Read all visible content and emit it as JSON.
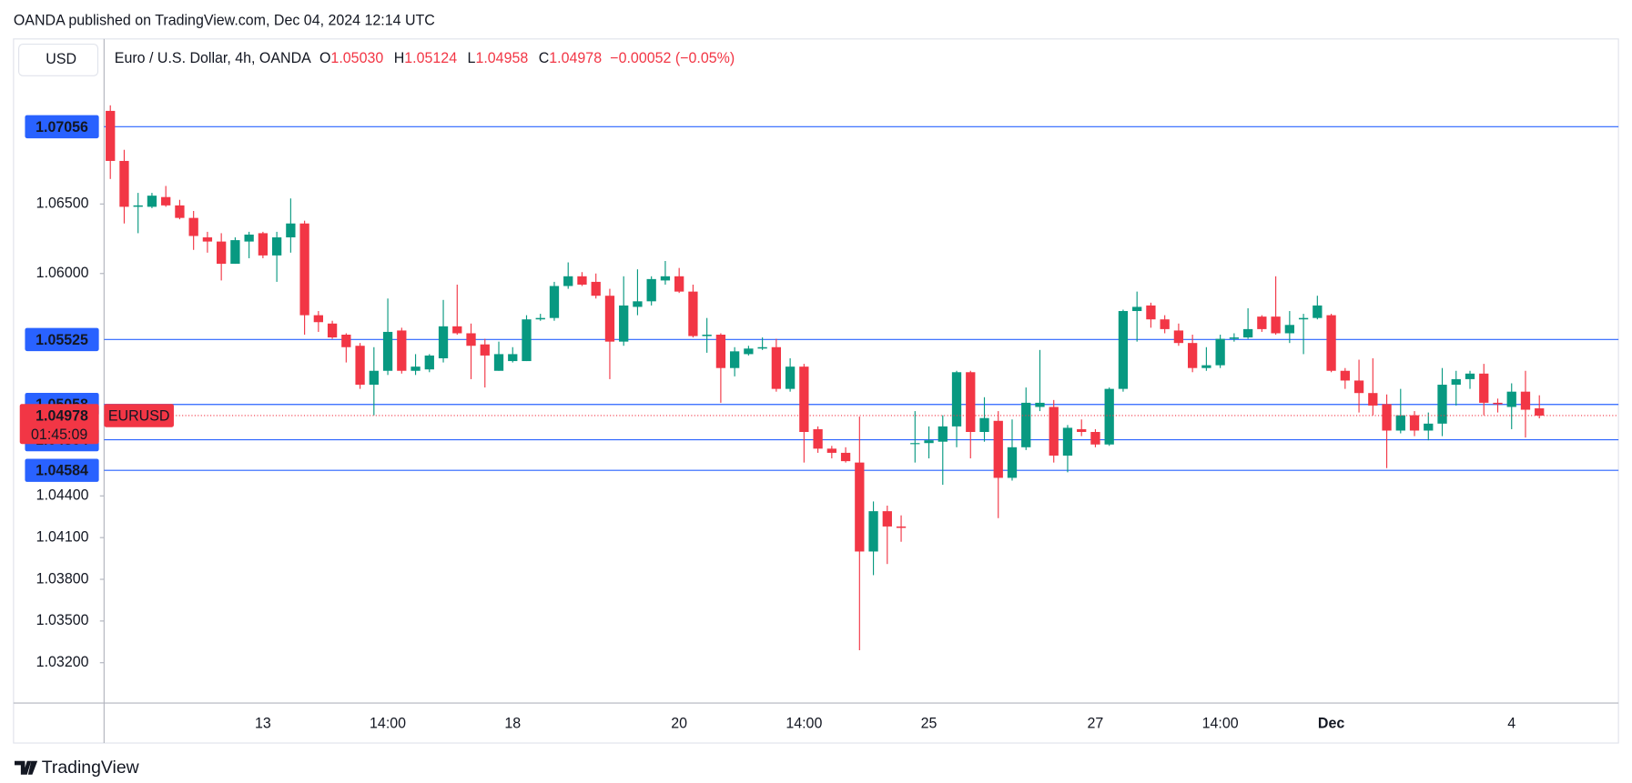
{
  "published": "OANDA published on TradingView.com, Dec 04, 2024 12:14 UTC",
  "brand": "TradingView",
  "chart_data": {
    "type": "candlestick",
    "currency": "USD",
    "header": {
      "symbol": "Euro / U.S. Dollar, 4h, OANDA",
      "items": [
        {
          "key": "O",
          "value": "1.05030"
        },
        {
          "key": "H",
          "value": "1.05124"
        },
        {
          "key": "L",
          "value": "1.04958"
        },
        {
          "key": "C",
          "value": "1.04978"
        }
      ],
      "change": "−0.00052 (−0.05%)"
    },
    "categories": [
      null,
      null,
      null,
      null,
      null,
      null,
      null,
      null,
      null,
      null,
      null,
      "13",
      null,
      null,
      null,
      null,
      null,
      null,
      null,
      null,
      "14:00",
      null,
      null,
      null,
      null,
      null,
      null,
      null,
      null,
      "18",
      null,
      null,
      null,
      null,
      null,
      null,
      null,
      null,
      null,
      null,
      null,
      "20",
      null,
      null,
      null,
      null,
      null,
      null,
      null,
      null,
      "14:00",
      null,
      null,
      null,
      null,
      null,
      null,
      null,
      null,
      "25",
      null,
      null,
      null,
      null,
      null,
      null,
      null,
      null,
      null,
      null,
      null,
      "27",
      null,
      null,
      null,
      null,
      null,
      null,
      null,
      null,
      "14:00",
      null,
      null,
      null,
      null,
      null,
      null,
      null,
      "Dec",
      null,
      null,
      null,
      null,
      null,
      null,
      null,
      null,
      null,
      null,
      null,
      null,
      "4",
      null,
      null
    ],
    "open": [
      1.0717,
      1.0681,
      1.0648,
      1.0648,
      1.0655,
      1.0649,
      1.064,
      1.0626,
      1.0623,
      1.0607,
      1.0623,
      1.0629,
      1.0613,
      1.0626,
      1.0636,
      1.057,
      1.0564,
      1.0556,
      1.0548,
      1.052,
      1.053,
      1.0559,
      1.053,
      1.0531,
      1.0539,
      1.0562,
      1.0557,
      1.0549,
      1.053,
      1.0537,
      1.0537,
      1.0567,
      1.0568,
      1.0591,
      1.0598,
      1.0594,
      1.0584,
      1.0551,
      1.0576,
      1.058,
      1.0595,
      1.0598,
      1.0587,
      1.0555,
      1.0556,
      1.0532,
      1.0542,
      1.0546,
      1.0547,
      1.0517,
      1.0533,
      1.0488,
      1.0474,
      1.0471,
      1.0464,
      1.04,
      1.0429,
      1.0418,
      1.0478,
      1.0478,
      1.0479,
      1.049,
      1.0529,
      1.0486,
      1.0494,
      1.0453,
      1.0475,
      1.0504,
      1.0504,
      1.0469,
      1.0488,
      1.0486,
      1.0477,
      1.0517,
      1.0573,
      1.0577,
      1.0567,
      1.0559,
      1.055,
      1.0532,
      1.0534,
      1.0553,
      1.0554,
      1.0569,
      1.0569,
      1.0557,
      1.0567,
      1.0568,
      1.057,
      1.053,
      1.0523,
      1.0514,
      1.0506,
      1.0487,
      1.0498,
      1.0487,
      1.0492,
      1.052,
      1.0524,
      1.0528,
      1.0507,
      1.0504,
      1.0515,
      1.0503
    ],
    "high": [
      1.0721,
      1.0689,
      1.0658,
      1.0658,
      1.0663,
      1.0653,
      1.0645,
      1.063,
      1.0629,
      1.0626,
      1.063,
      1.063,
      1.063,
      1.0654,
      1.0638,
      1.0573,
      1.0566,
      1.0557,
      1.055,
      1.0547,
      1.0582,
      1.0561,
      1.0542,
      1.0542,
      1.0581,
      1.0592,
      1.0564,
      1.0553,
      1.0551,
      1.0547,
      1.057,
      1.0571,
      1.0594,
      1.0608,
      1.0601,
      1.06,
      1.0589,
      1.0598,
      1.0603,
      1.0598,
      1.0609,
      1.0604,
      1.0592,
      1.0568,
      1.0557,
      1.0547,
      1.0548,
      1.0554,
      1.0553,
      1.0539,
      1.0535,
      1.049,
      1.0476,
      1.0475,
      1.0497,
      1.0436,
      1.0433,
      1.0426,
      1.0501,
      1.049,
      1.0498,
      1.053,
      1.053,
      1.0511,
      1.0501,
      1.0495,
      1.0518,
      1.0545,
      1.0509,
      1.0491,
      1.0495,
      1.0488,
      1.0518,
      1.0574,
      1.0587,
      1.0579,
      1.057,
      1.0564,
      1.0556,
      1.0547,
      1.0556,
      1.0557,
      1.0575,
      1.057,
      1.0598,
      1.0573,
      1.0571,
      1.0584,
      1.0571,
      1.0532,
      1.0538,
      1.0539,
      1.0513,
      1.0517,
      1.0501,
      1.05,
      1.0532,
      1.053,
      1.053,
      1.0535,
      1.051,
      1.0521,
      1.053,
      1.05124
    ],
    "low": [
      1.0668,
      1.0636,
      1.0629,
      1.0647,
      1.0648,
      1.0639,
      1.0617,
      1.0615,
      1.0595,
      1.0607,
      1.0611,
      1.0611,
      1.0594,
      1.0615,
      1.0556,
      1.0558,
      1.0553,
      1.0536,
      1.0517,
      1.0498,
      1.0527,
      1.0528,
      1.0527,
      1.0529,
      1.0536,
      1.0556,
      1.0524,
      1.0518,
      1.053,
      1.0536,
      1.0537,
      1.0566,
      1.0566,
      1.0589,
      1.0591,
      1.0582,
      1.0524,
      1.0548,
      1.057,
      1.0577,
      1.0592,
      1.0586,
      1.0554,
      1.0543,
      1.0507,
      1.0526,
      1.0541,
      1.0545,
      1.0515,
      1.0515,
      1.0464,
      1.0471,
      1.0467,
      1.0464,
      1.0329,
      1.0383,
      1.0391,
      1.0407,
      1.0464,
      1.0467,
      1.0448,
      1.0475,
      1.0467,
      1.0479,
      1.0424,
      1.0451,
      1.0473,
      1.0501,
      1.0464,
      1.0457,
      1.0483,
      1.0475,
      1.0476,
      1.0515,
      1.0551,
      1.0561,
      1.0557,
      1.0548,
      1.0529,
      1.053,
      1.0532,
      1.0551,
      1.0553,
      1.0558,
      1.0556,
      1.055,
      1.0542,
      1.0567,
      1.0529,
      1.0517,
      1.05,
      1.0498,
      1.046,
      1.0485,
      1.0483,
      1.048,
      1.0483,
      1.0505,
      1.0517,
      1.0498,
      1.05,
      1.0488,
      1.0482,
      1.04958
    ],
    "close": [
      1.0681,
      1.0648,
      1.0649,
      1.0656,
      1.0649,
      1.064,
      1.0627,
      1.0623,
      1.0607,
      1.0624,
      1.0628,
      1.0613,
      1.0626,
      1.0636,
      1.057,
      1.0565,
      1.0554,
      1.0547,
      1.052,
      1.053,
      1.0558,
      1.053,
      1.0533,
      1.0541,
      1.0562,
      1.0557,
      1.0548,
      1.0541,
      1.0542,
      1.0542,
      1.0567,
      1.0568,
      1.0591,
      1.0598,
      1.0592,
      1.0584,
      1.0551,
      1.0577,
      1.058,
      1.0596,
      1.0598,
      1.0587,
      1.0555,
      1.0556,
      1.0532,
      1.0544,
      1.0546,
      1.0547,
      1.0517,
      1.0533,
      1.0486,
      1.0474,
      1.0471,
      1.0465,
      1.04,
      1.0429,
      1.0418,
      1.0417,
      1.0478,
      1.048,
      1.049,
      1.0529,
      1.0486,
      1.0496,
      1.0453,
      1.0475,
      1.0507,
      1.0507,
      1.0469,
      1.0489,
      1.0486,
      1.0477,
      1.0517,
      1.0573,
      1.0576,
      1.0567,
      1.056,
      1.055,
      1.0532,
      1.0534,
      1.0553,
      1.0554,
      1.056,
      1.056,
      1.0557,
      1.0563,
      1.0568,
      1.0577,
      1.053,
      1.0523,
      1.0514,
      1.0505,
      1.0487,
      1.0498,
      1.0487,
      1.0492,
      1.052,
      1.0524,
      1.0528,
      1.0507,
      1.0506,
      1.0515,
      1.0502,
      1.04978
    ],
    "up_color": "#089981",
    "down_color": "#f23645",
    "line_color": "#2962ff",
    "ylim": [
      1.0291,
      1.0768
    ],
    "yticks": [
      {
        "value": 1.065,
        "label": "1.06500"
      },
      {
        "value": 1.06,
        "label": "1.06000"
      },
      {
        "value": 1.044,
        "label": "1.04400"
      },
      {
        "value": 1.041,
        "label": "1.04100"
      },
      {
        "value": 1.038,
        "label": "1.03800"
      },
      {
        "value": 1.035,
        "label": "1.03500"
      },
      {
        "value": 1.032,
        "label": "1.03200"
      }
    ],
    "price_lines": [
      1.07056,
      1.05525,
      1.05058,
      1.04804,
      1.04584
    ],
    "last_price": 1.04978,
    "countdown": "01:45:09",
    "symbol_tag": "EURUSD"
  }
}
